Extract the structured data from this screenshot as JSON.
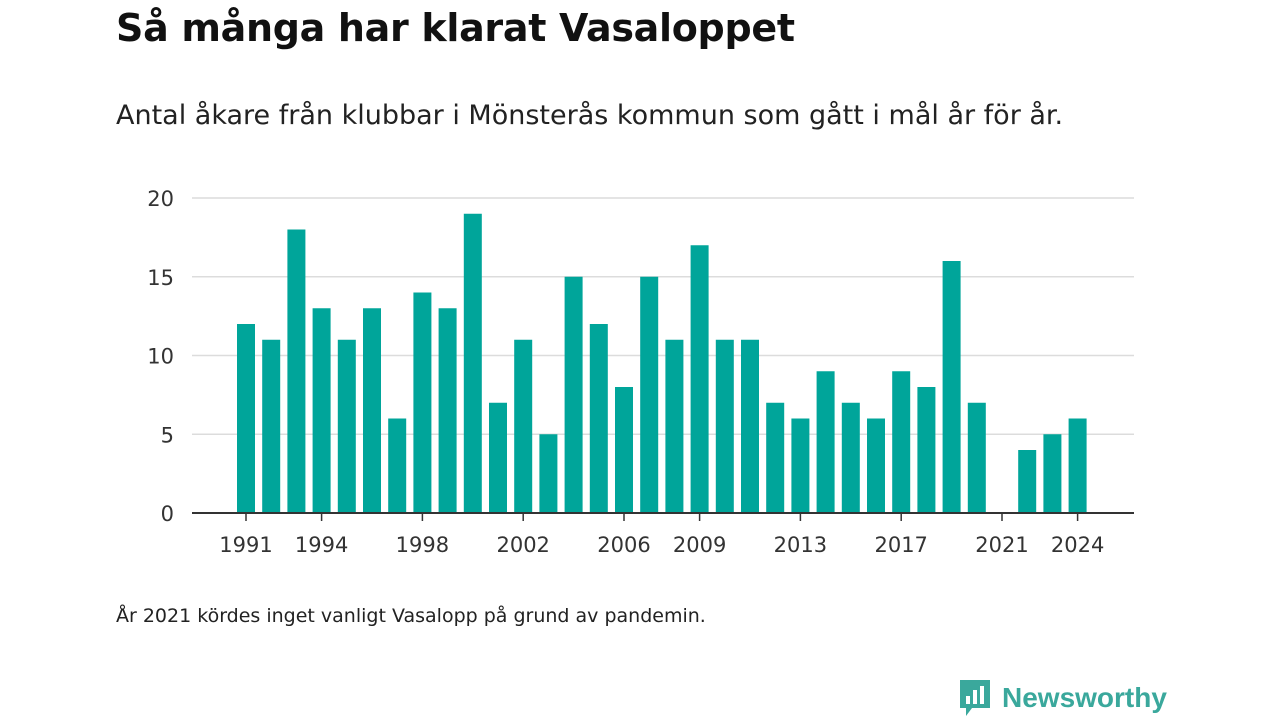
{
  "header": {
    "title": "Så många har klarat Vasaloppet",
    "subtitle": "Antal åkare från klubbar i Mönsterås kommun som gått i mål år för år."
  },
  "footer": {
    "note": "År 2021 kördes inget vanligt Vasalopp på grund av pandemin.",
    "brand": "Newsworthy"
  },
  "colors": {
    "bar": "#00a59a",
    "grid": "#dcdcdc",
    "axis": "#333333",
    "brand": "#3aa89c"
  },
  "chart_data": {
    "type": "bar",
    "categories": [
      "1991",
      "1992",
      "1993",
      "1994",
      "1995",
      "1996",
      "1997",
      "1998",
      "1999",
      "2000",
      "2001",
      "2002",
      "2003",
      "2004",
      "2005",
      "2006",
      "2007",
      "2008",
      "2009",
      "2010",
      "2011",
      "2012",
      "2013",
      "2014",
      "2015",
      "2016",
      "2017",
      "2018",
      "2019",
      "2020",
      "2021",
      "2022",
      "2023",
      "2024"
    ],
    "values": [
      12,
      11,
      18,
      13,
      11,
      13,
      6,
      14,
      13,
      19,
      7,
      11,
      5,
      15,
      12,
      8,
      15,
      11,
      17,
      11,
      11,
      7,
      6,
      9,
      7,
      6,
      9,
      8,
      16,
      7,
      null,
      4,
      5,
      6
    ],
    "x_tick_labels": [
      "1991",
      "1994",
      "1998",
      "2002",
      "2006",
      "2009",
      "2013",
      "2017",
      "2021",
      "2024"
    ],
    "y_ticks": [
      0,
      5,
      10,
      15,
      20
    ],
    "ylim": [
      0,
      20
    ],
    "grid": true,
    "xlabel": "",
    "ylabel": ""
  }
}
